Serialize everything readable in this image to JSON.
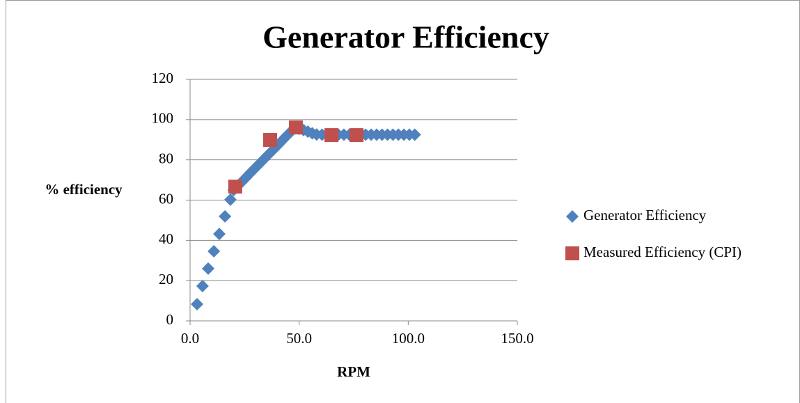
{
  "chart_data": {
    "type": "scatter",
    "title": "Generator Efficiency",
    "x_label": "RPM",
    "y_label": "% efficiency",
    "xlim": [
      0,
      150
    ],
    "xticks": [
      {
        "value": 0,
        "label": "0.0"
      },
      {
        "value": 50,
        "label": "50.0"
      },
      {
        "value": 100,
        "label": "100.0"
      },
      {
        "value": 150,
        "label": "150.0"
      }
    ],
    "ylim": [
      0,
      120
    ],
    "yticks": [
      0,
      20,
      40,
      60,
      80,
      100,
      120
    ],
    "grid": true,
    "legend": "right",
    "series": [
      {
        "name": "Generator Efficiency",
        "color": "#4f81bd",
        "marker": "diamond",
        "x": [
          3.2,
          5.7,
          8.3,
          10.9,
          13.4,
          16,
          18.5,
          20,
          21,
          22,
          23,
          24,
          25,
          26,
          27,
          28,
          29,
          30,
          31,
          32,
          33,
          34,
          35,
          36,
          37,
          38,
          39,
          40,
          41,
          42,
          43,
          44,
          45,
          46,
          47,
          48,
          50,
          52,
          54,
          56,
          58,
          60.5,
          63,
          65.5,
          68,
          70.5,
          73,
          75.5,
          78,
          80.5,
          83,
          85.5,
          88,
          90.5,
          93,
          95.5,
          98,
          100.5,
          103
        ],
        "values": [
          8.3,
          17.3,
          26,
          34.6,
          43.2,
          51.9,
          60.2,
          65,
          66.1,
          67.2,
          68.3,
          69.4,
          70.5,
          71.6,
          72.8,
          73.9,
          75,
          76.1,
          77.2,
          78.3,
          79.4,
          80.5,
          81.6,
          82.7,
          83.8,
          84.9,
          86,
          87.1,
          88.2,
          89.4,
          90.5,
          91.6,
          92.7,
          93.8,
          94.9,
          96,
          95.4,
          94.8,
          94,
          93.2,
          92.6,
          92.5,
          92.5,
          92.5,
          92.5,
          92.5,
          92.5,
          92.5,
          92.5,
          92.5,
          92.5,
          92.5,
          92.5,
          92.5,
          92.5,
          92.5,
          92.5,
          92.5,
          92.5
        ]
      },
      {
        "name": "Measured Efficiency (CPI)",
        "color": "#c0504d",
        "marker": "square",
        "x": [
          20.7,
          36.7,
          48.5,
          64.8,
          76.3
        ],
        "values": [
          66.7,
          89.9,
          96.1,
          92.3,
          92.3
        ]
      }
    ]
  }
}
